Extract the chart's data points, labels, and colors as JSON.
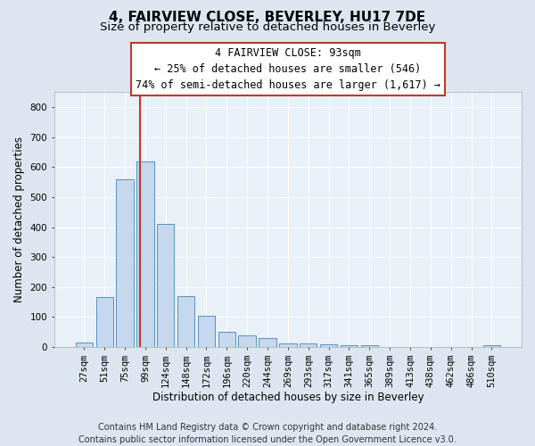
{
  "title": "4, FAIRVIEW CLOSE, BEVERLEY, HU17 7DE",
  "subtitle": "Size of property relative to detached houses in Beverley",
  "xlabel": "Distribution of detached houses by size in Beverley",
  "ylabel": "Number of detached properties",
  "categories": [
    "27sqm",
    "51sqm",
    "75sqm",
    "99sqm",
    "124sqm",
    "148sqm",
    "172sqm",
    "196sqm",
    "220sqm",
    "244sqm",
    "269sqm",
    "293sqm",
    "317sqm",
    "341sqm",
    "365sqm",
    "389sqm",
    "413sqm",
    "438sqm",
    "462sqm",
    "486sqm",
    "510sqm"
  ],
  "values": [
    15,
    165,
    560,
    620,
    410,
    170,
    103,
    50,
    38,
    30,
    12,
    10,
    8,
    5,
    4,
    0,
    0,
    0,
    0,
    0,
    6
  ],
  "bar_color": "#c5d8ee",
  "bar_edge_color": "#5a8fc0",
  "vline_color": "#c0392b",
  "vline_x": 2.72,
  "annotation_line1": "4 FAIRVIEW CLOSE: 93sqm",
  "annotation_line2": "← 25% of detached houses are smaller (546)",
  "annotation_line3": "74% of semi-detached houses are larger (1,617) →",
  "annotation_box_edge_color": "#c0392b",
  "ylim_max": 850,
  "yticks": [
    0,
    100,
    200,
    300,
    400,
    500,
    600,
    700,
    800
  ],
  "footer_line1": "Contains HM Land Registry data © Crown copyright and database right 2024.",
  "footer_line2": "Contains public sector information licensed under the Open Government Licence v3.0.",
  "fig_bg": "#dde6f0",
  "ax_bg": "#e8f0f8",
  "grid_color": "#ffffff",
  "title_fontsize": 11,
  "subtitle_fontsize": 9.5,
  "label_fontsize": 8.5,
  "tick_fontsize": 7.5,
  "annot_fontsize": 8.5,
  "footer_fontsize": 7
}
